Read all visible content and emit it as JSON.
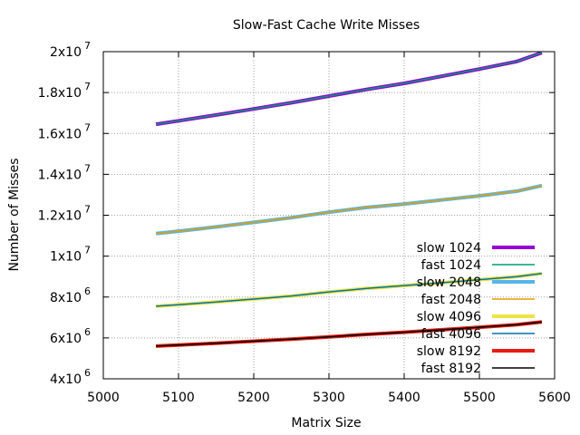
{
  "chart_data": {
    "type": "line",
    "title": "Slow-Fast Cache Write Misses",
    "xlabel": "Matrix Size",
    "ylabel": "Number of Misses",
    "xlim": [
      5000,
      5600
    ],
    "ylim": [
      4000000,
      20000000
    ],
    "grid": true,
    "legend_position": "bottom-right",
    "x_ticks": [
      "5000",
      "5100",
      "5200",
      "5300",
      "5400",
      "5500",
      "5600"
    ],
    "y_ticks": [
      {
        "mantissa": "4x10",
        "exp": "6",
        "value": 4000000
      },
      {
        "mantissa": "6x10",
        "exp": "6",
        "value": 6000000
      },
      {
        "mantissa": "8x10",
        "exp": "6",
        "value": 8000000
      },
      {
        "mantissa": "1x10",
        "exp": "7",
        "value": 10000000
      },
      {
        "mantissa": "1.2x10",
        "exp": "7",
        "value": 12000000
      },
      {
        "mantissa": "1.4x10",
        "exp": "7",
        "value": 14000000
      },
      {
        "mantissa": "1.6x10",
        "exp": "7",
        "value": 16000000
      },
      {
        "mantissa": "1.8x10",
        "exp": "7",
        "value": 18000000
      },
      {
        "mantissa": "2x10",
        "exp": "7",
        "value": 20000000
      }
    ],
    "x": [
      5070,
      5100,
      5150,
      5200,
      5250,
      5300,
      5350,
      5400,
      5450,
      5500,
      5550,
      5583
    ],
    "series": [
      {
        "name": "slow 1024",
        "color": "#9400d3",
        "width": 4,
        "values": [
          16450000,
          16620000,
          16900000,
          17200000,
          17500000,
          17830000,
          18150000,
          18450000,
          18800000,
          19150000,
          19520000,
          19950000
        ]
      },
      {
        "name": "fast 1024",
        "color": "#009e73",
        "width": 1.5,
        "values": [
          16450000,
          16620000,
          16900000,
          17200000,
          17500000,
          17830000,
          18150000,
          18450000,
          18800000,
          19150000,
          19520000,
          19950000
        ]
      },
      {
        "name": "slow 2048",
        "color": "#56b4e9",
        "width": 4,
        "values": [
          11100000,
          11220000,
          11430000,
          11650000,
          11880000,
          12150000,
          12380000,
          12550000,
          12750000,
          12950000,
          13180000,
          13450000
        ]
      },
      {
        "name": "fast 2048",
        "color": "#e69f00",
        "width": 1.5,
        "values": [
          11100000,
          11220000,
          11430000,
          11650000,
          11880000,
          12150000,
          12380000,
          12550000,
          12750000,
          12950000,
          13180000,
          13450000
        ]
      },
      {
        "name": "slow 4096",
        "color": "#f0e442",
        "width": 4,
        "values": [
          7550000,
          7620000,
          7760000,
          7900000,
          8050000,
          8250000,
          8420000,
          8560000,
          8700000,
          8850000,
          9000000,
          9150000
        ]
      },
      {
        "name": "fast 4096",
        "color": "#0072b2",
        "width": 1.5,
        "values": [
          7550000,
          7620000,
          7760000,
          7900000,
          8050000,
          8250000,
          8420000,
          8560000,
          8700000,
          8850000,
          9000000,
          9150000
        ]
      },
      {
        "name": "slow 8192",
        "color": "#e51e10",
        "width": 4,
        "values": [
          5600000,
          5650000,
          5740000,
          5840000,
          5940000,
          6050000,
          6170000,
          6280000,
          6400000,
          6520000,
          6650000,
          6780000
        ]
      },
      {
        "name": "fast 8192",
        "color": "#000000",
        "width": 1.5,
        "values": [
          5600000,
          5650000,
          5740000,
          5840000,
          5940000,
          6050000,
          6170000,
          6280000,
          6400000,
          6520000,
          6650000,
          6780000
        ]
      }
    ]
  }
}
